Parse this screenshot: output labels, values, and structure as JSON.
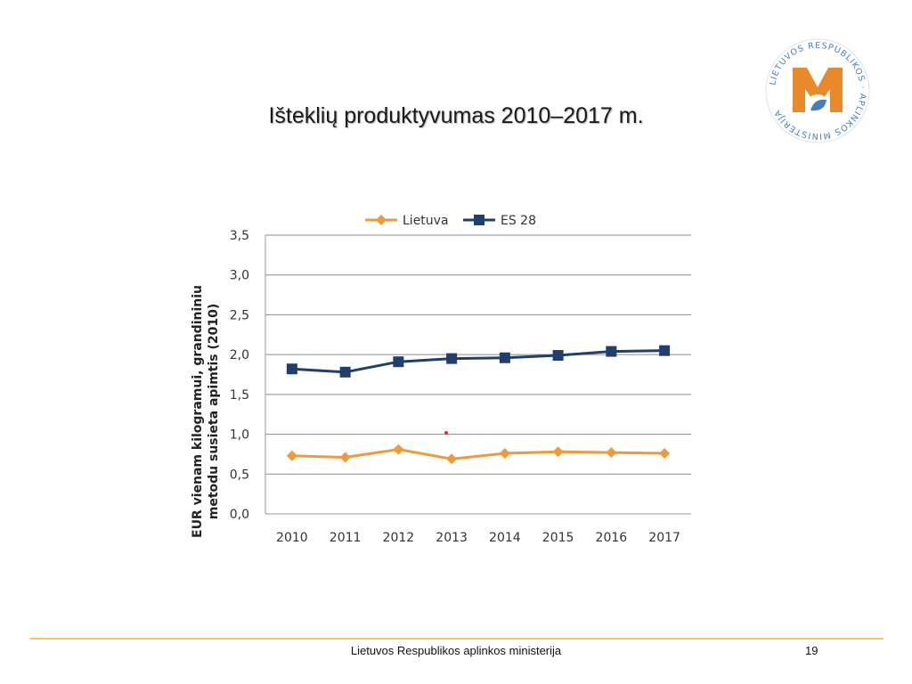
{
  "slide": {
    "title": "Išteklių produktyvumas 2010–2017 m.",
    "footer": "Lietuvos Respublikos aplinkos ministerija",
    "page_number": "19"
  },
  "logo": {
    "text": "LIETUVOS RESPUBLIKOS APLINKOS MINISTERIJA",
    "colors": {
      "orange": "#e8892b",
      "blue": "#4a7fb5"
    }
  },
  "chart_data": {
    "type": "line",
    "title": "",
    "xlabel": "",
    "ylabel_line1": "EUR vienam kilogramui, grandininiu",
    "ylabel_line2": "metodu susieta apimtis (2010)",
    "categories": [
      "2010",
      "2011",
      "2012",
      "2013",
      "2014",
      "2015",
      "2016",
      "2017"
    ],
    "y_ticks": [
      "0,0",
      "0,5",
      "1,0",
      "1,5",
      "2,0",
      "2,5",
      "3,0",
      "3,5"
    ],
    "ylim": [
      0,
      3.5
    ],
    "grid": true,
    "legend_position": "top",
    "series": [
      {
        "name": "Lietuva",
        "color": "#f0993a",
        "marker": "diamond",
        "values": [
          0.73,
          0.71,
          0.81,
          0.69,
          0.76,
          0.78,
          0.77,
          0.76
        ]
      },
      {
        "name": "ES 28",
        "color": "#1f3f6e",
        "marker": "square",
        "values": [
          1.82,
          1.78,
          1.91,
          1.95,
          1.96,
          1.99,
          2.04,
          2.05
        ]
      }
    ]
  }
}
